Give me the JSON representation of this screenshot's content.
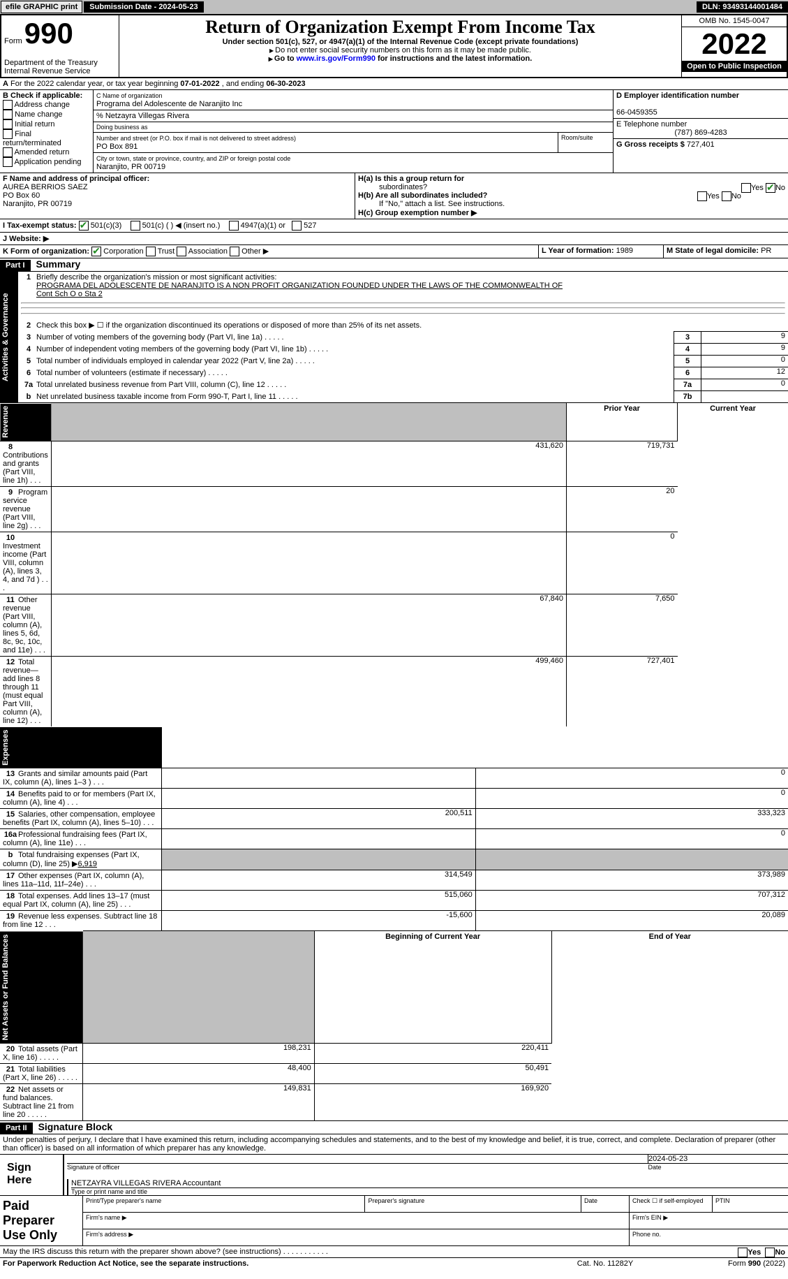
{
  "topbar": {
    "efile": "efile GRAPHIC print",
    "subdate_lbl": "Submission Date - 2024-05-23",
    "dln": "DLN: 93493144001484"
  },
  "header": {
    "form": "Form",
    "num": "990",
    "title": "Return of Organization Exempt From Income Tax",
    "sub": "Under section 501(c), 527, or 4947(a)(1) of the Internal Revenue Code (except private foundations)",
    "ssn": "Do not enter social security numbers on this form as it may be made public.",
    "goto_pre": "Go to ",
    "goto_link": "www.irs.gov/Form990",
    "goto_post": " for instructions and the latest information.",
    "dept": "Department of the Treasury",
    "irs": "Internal Revenue Service",
    "omb": "OMB No. 1545-0047",
    "year": "2022",
    "open": "Open to Public Inspection"
  },
  "A": {
    "text": "For the 2022 calendar year, or tax year beginning ",
    "begin": "07-01-2022",
    "mid": " , and ending ",
    "end": "06-30-2023"
  },
  "B": {
    "lbl": "B Check if applicable:",
    "addr": "Address change",
    "name": "Name change",
    "init": "Initial return",
    "final": "Final return/terminated",
    "amend": "Amended return",
    "app": "Application pending"
  },
  "C": {
    "lbl": "C Name of organization",
    "org": "Programa del Adolescente de Naranjito Inc",
    "care": "% Netzayra Villegas Rivera",
    "dba": "Doing business as",
    "street_lbl": "Number and street (or P.O. box if mail is not delivered to street address)",
    "room": "Room/suite",
    "street": "PO Box 891",
    "city_lbl": "City or town, state or province, country, and ZIP or foreign postal code",
    "city": "Naranjito, PR  00719"
  },
  "D": {
    "lbl": "D Employer identification number",
    "ein": "66-0459355"
  },
  "E": {
    "lbl": "E Telephone number",
    "tel": "(787) 869-4283"
  },
  "G": {
    "lbl": "G Gross receipts $",
    "amt": "727,401"
  },
  "F": {
    "lbl": "F  Name and address of principal officer:",
    "name": "AUREA BERRIOS SAEZ",
    "l2": "PO Box 60",
    "l3": "Naranjito, PR  00719"
  },
  "H": {
    "a": "H(a)  Is this a group return for",
    "a2": "subordinates?",
    "b": "H(b)  Are all subordinates included?",
    "bnote": "If \"No,\" attach a list. See instructions.",
    "c": "H(c)  Group exemption number ▶",
    "yes": "Yes",
    "no": "No"
  },
  "I": {
    "lbl": "I     Tax-exempt status:",
    "c3": "501(c)(3)",
    "c": "501(c) (   ) ◀ (insert no.)",
    "a1": "4947(a)(1) or",
    "s527": "527"
  },
  "J": {
    "lbl": "J    Website: ▶"
  },
  "K": {
    "lbl": "K Form of organization:",
    "corp": "Corporation",
    "trust": "Trust",
    "assoc": "Association",
    "other": "Other ▶"
  },
  "L": {
    "lbl": "L Year of formation:",
    "val": "1989"
  },
  "M": {
    "lbl": "M State of legal domicile:",
    "val": "PR"
  },
  "part1": {
    "hdr": "Part I",
    "title": "Summary",
    "l1": "Briefly describe the organization's mission or most significant activities:",
    "mission1": "PROGRAMA DEL ADOLESCENTE DE NARANJITO IS A NON PROFIT ORGANIZATION FOUNDED UNDER THE LAWS OF THE COMMONWEALTH OF",
    "mission2": "Cont Sch O o Sta 2",
    "l2": "Check this box ▶ ☐  if the organization discontinued its operations or disposed of more than 25% of its net assets.",
    "lines": [
      {
        "n": "3",
        "t": "Number of voting members of the governing body (Part VI, line 1a)",
        "bn": "3",
        "v": "9"
      },
      {
        "n": "4",
        "t": "Number of independent voting members of the governing body (Part VI, line 1b)",
        "bn": "4",
        "v": "9"
      },
      {
        "n": "5",
        "t": "Total number of individuals employed in calendar year 2022 (Part V, line 2a)",
        "bn": "5",
        "v": "0"
      },
      {
        "n": "6",
        "t": "Total number of volunteers (estimate if necessary)",
        "bn": "6",
        "v": "12"
      },
      {
        "n": "7a",
        "t": "Total unrelated business revenue from Part VIII, column (C), line 12",
        "bn": "7a",
        "v": "0"
      },
      {
        "n": "b",
        "t": "Net unrelated business taxable income from Form 990-T, Part I, line 11",
        "bn": "7b",
        "v": ""
      }
    ],
    "colhdr": {
      "py": "Prior Year",
      "cy": "Current Year",
      "bcy": "Beginning of Current Year",
      "ecy": "End of Year"
    },
    "rev": [
      {
        "n": "8",
        "t": "Contributions and grants (Part VIII, line 1h)",
        "p": "431,620",
        "c": "719,731"
      },
      {
        "n": "9",
        "t": "Program service revenue (Part VIII, line 2g)",
        "p": "",
        "c": "20"
      },
      {
        "n": "10",
        "t": "Investment income (Part VIII, column (A), lines 3, 4, and 7d )",
        "p": "",
        "c": "0"
      },
      {
        "n": "11",
        "t": "Other revenue (Part VIII, column (A), lines 5, 6d, 8c, 9c, 10c, and 11e)",
        "p": "67,840",
        "c": "7,650"
      },
      {
        "n": "12",
        "t": "Total revenue—add lines 8 through 11 (must equal Part VIII, column (A), line 12)",
        "p": "499,460",
        "c": "727,401"
      }
    ],
    "exp": [
      {
        "n": "13",
        "t": "Grants and similar amounts paid (Part IX, column (A), lines 1–3 )",
        "p": "",
        "c": "0"
      },
      {
        "n": "14",
        "t": "Benefits paid to or for members (Part IX, column (A), line 4)",
        "p": "",
        "c": "0"
      },
      {
        "n": "15",
        "t": "Salaries, other compensation, employee benefits (Part IX, column (A), lines 5–10)",
        "p": "200,511",
        "c": "333,323"
      },
      {
        "n": "16a",
        "t": "Professional fundraising fees (Part IX, column (A), line 11e)",
        "p": "",
        "c": "0"
      },
      {
        "n": "b",
        "t": "Total fundraising expenses (Part IX, column (D), line 25) ▶",
        "bval": "6,919",
        "p": "grey",
        "c": "grey"
      },
      {
        "n": "17",
        "t": "Other expenses (Part IX, column (A), lines 11a–11d, 11f–24e)",
        "p": "314,549",
        "c": "373,989"
      },
      {
        "n": "18",
        "t": "Total expenses. Add lines 13–17 (must equal Part IX, column (A), line 25)",
        "p": "515,060",
        "c": "707,312"
      },
      {
        "n": "19",
        "t": "Revenue less expenses. Subtract line 18 from line 12",
        "p": "-15,600",
        "c": "20,089"
      }
    ],
    "net": [
      {
        "n": "20",
        "t": "Total assets (Part X, line 16)",
        "p": "198,231",
        "c": "220,411"
      },
      {
        "n": "21",
        "t": "Total liabilities (Part X, line 26)",
        "p": "48,400",
        "c": "50,491"
      },
      {
        "n": "22",
        "t": "Net assets or fund balances. Subtract line 21 from line 20",
        "p": "149,831",
        "c": "169,920"
      }
    ],
    "sidelabels": {
      "gov": "Activities & Governance",
      "rev": "Revenue",
      "exp": "Expenses",
      "net": "Net Assets or Fund Balances"
    }
  },
  "part2": {
    "hdr": "Part II",
    "title": "Signature Block",
    "decl": "Under penalties of perjury, I declare that I have examined this return, including accompanying schedules and statements, and to the best of my knowledge and belief, it is true, correct, and complete. Declaration of preparer (other than officer) is based on all information of which preparer has any knowledge.",
    "sign": "Sign Here",
    "sigoff": "Signature of officer",
    "date": "Date",
    "sigdate": "2024-05-23",
    "printed": "NETZAYRA VILLEGAS RIVERA  Accountant",
    "printed_lbl": "Type or print name and title",
    "paid": "Paid Preparer Use Only",
    "pname": "Print/Type preparer's name",
    "psig": "Preparer's signature",
    "pdate": "Date",
    "check": "Check ☐ if self-employed",
    "ptin": "PTIN",
    "fname": "Firm's name   ▶",
    "fein": "Firm's EIN ▶",
    "faddr": "Firm's address ▶",
    "phone": "Phone no.",
    "may": "May the IRS discuss this return with the preparer shown above? (see instructions)"
  },
  "footer": {
    "pra": "For Paperwork Reduction Act Notice, see the separate instructions.",
    "cat": "Cat. No. 11282Y",
    "form": "Form 990 (2022)"
  }
}
